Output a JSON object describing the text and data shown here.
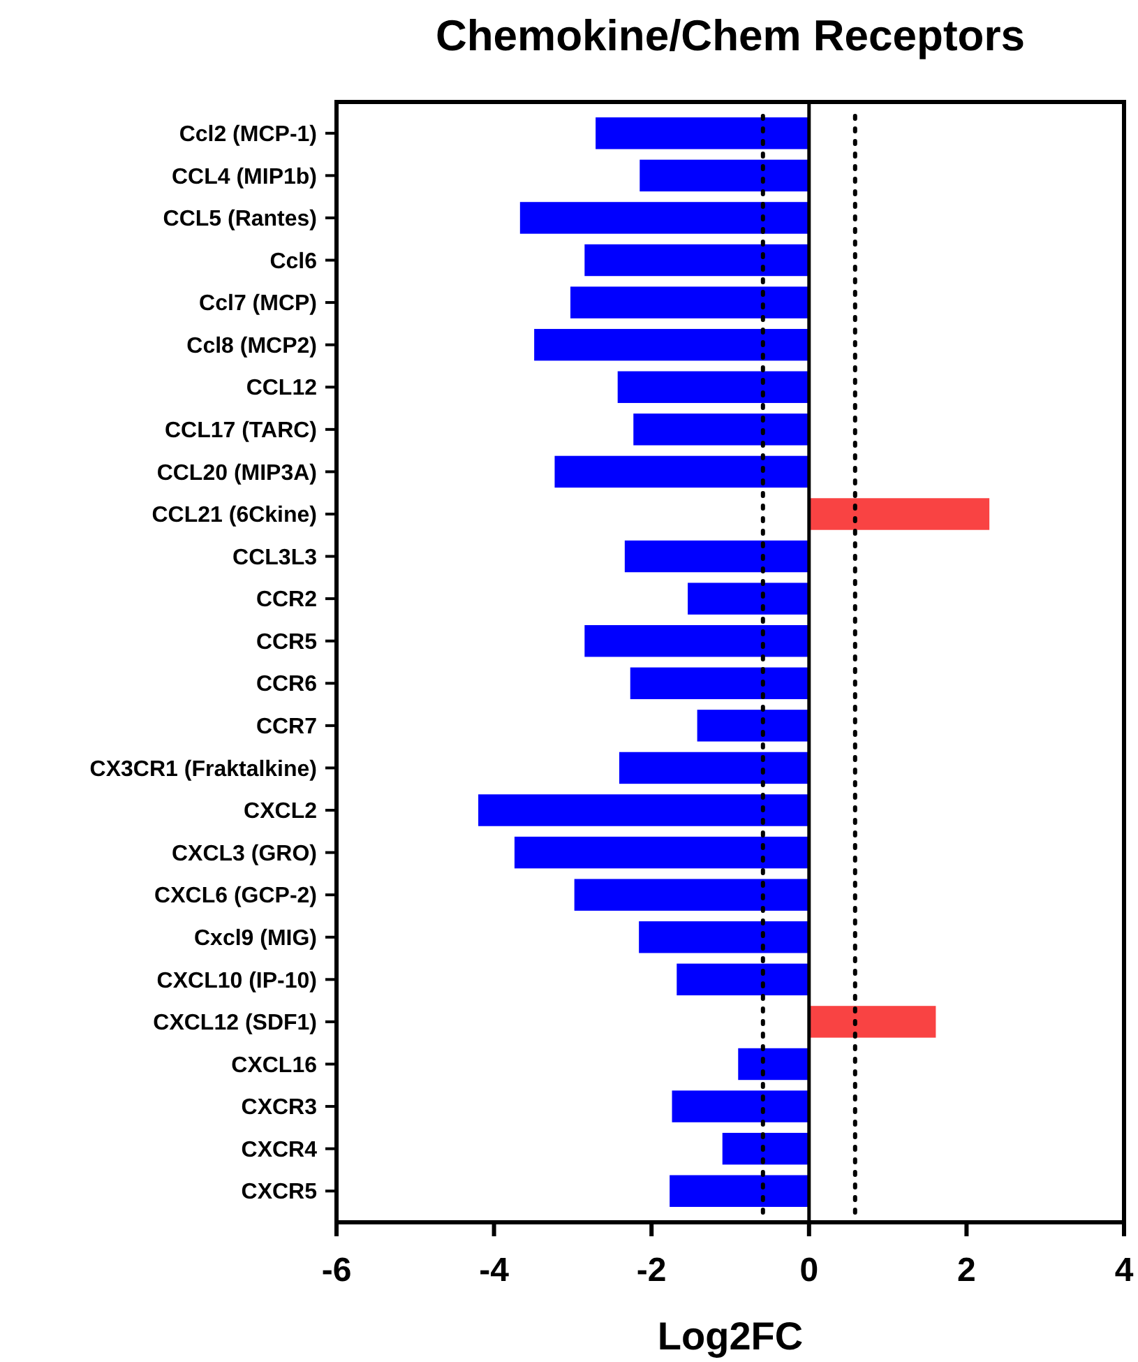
{
  "chart_data": {
    "type": "bar",
    "orientation": "horizontal",
    "title": "Chemokine/Chem Receptors",
    "xlabel": "Log2FC",
    "categories": [
      "Ccl2 (MCP-1)",
      "CCL4 (MIP1b)",
      "CCL5 (Rantes)",
      "Ccl6",
      "Ccl7 (MCP)",
      "Ccl8 (MCP2)",
      "CCL12",
      "CCL17 (TARC)",
      "CCL20 (MIP3A)",
      "CCL21 (6Ckine)",
      "CCL3L3",
      "CCR2",
      "CCR5",
      "CCR6",
      "CCR7",
      "CX3CR1 (Fraktalkine)",
      "CXCL2",
      "CXCL3 (GRO)",
      "CXCL6 (GCP-2)",
      "Cxcl9 (MIG)",
      "CXCL10 (IP-10)",
      "CXCL12 (SDF1)",
      "CXCL16",
      "CXCR3",
      "CXCR4",
      "CXCR5"
    ],
    "values": [
      -2.71,
      -2.15,
      -3.67,
      -2.85,
      -3.03,
      -3.49,
      -2.43,
      -2.23,
      -3.23,
      2.29,
      -2.34,
      -1.54,
      -2.85,
      -2.27,
      -1.42,
      -2.41,
      -4.2,
      -3.74,
      -2.98,
      -2.16,
      -1.68,
      1.61,
      -0.9,
      -1.74,
      -1.1,
      -1.77
    ],
    "colors": [
      "#0000ff",
      "#0000ff",
      "#0000ff",
      "#0000ff",
      "#0000ff",
      "#0000ff",
      "#0000ff",
      "#0000ff",
      "#0000ff",
      "#f94343",
      "#0000ff",
      "#0000ff",
      "#0000ff",
      "#0000ff",
      "#0000ff",
      "#0000ff",
      "#0000ff",
      "#0000ff",
      "#0000ff",
      "#0000ff",
      "#0000ff",
      "#f94343",
      "#0000ff",
      "#0000ff",
      "#0000ff",
      "#0000ff"
    ],
    "xlim": [
      -6,
      4
    ],
    "xticks": [
      -6,
      -4,
      -2,
      0,
      2,
      4
    ],
    "ref_lines": [
      {
        "axis": "x",
        "value": -0.585,
        "color": "#000000",
        "line_style": "dotted"
      },
      {
        "axis": "x",
        "value": 0.585,
        "color": "#000000",
        "line_style": "dotted"
      }
    ]
  }
}
